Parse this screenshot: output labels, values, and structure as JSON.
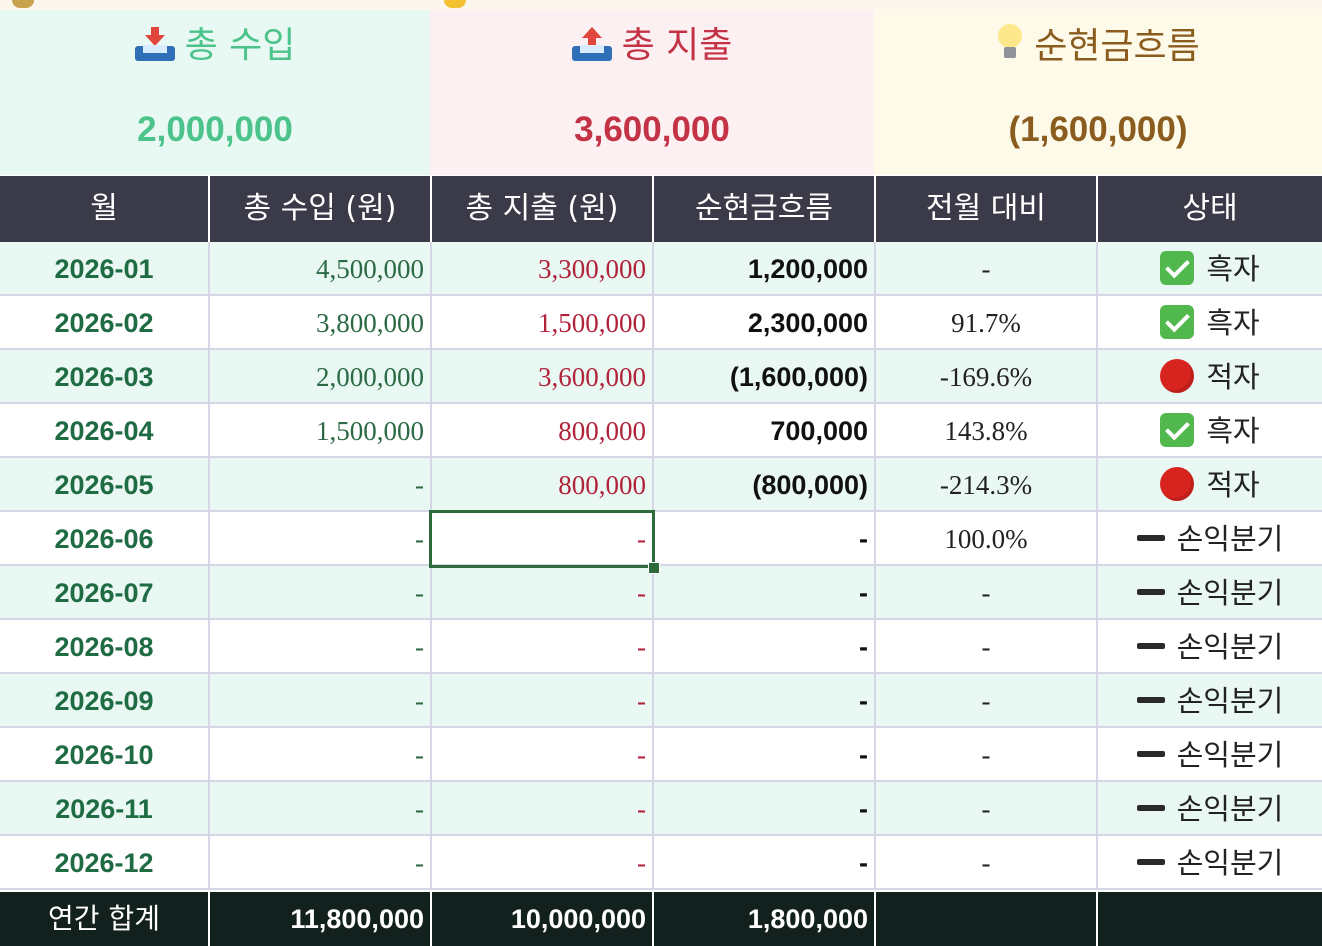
{
  "summary": {
    "income": {
      "label": "총 수입",
      "value": "2,000,000",
      "icon": "inbox-tray-icon",
      "color": "#4cc38a"
    },
    "expense": {
      "label": "총 지출",
      "value": "3,600,000",
      "icon": "outbox-tray-icon",
      "color": "#c33245"
    },
    "net": {
      "label": "순현금흐름",
      "value": "(1,600,000)",
      "icon": "light-bulb-icon",
      "color": "#8a5c1e"
    }
  },
  "table": {
    "columns": [
      "월",
      "총 수입 (원)",
      "총 지출 (원)",
      "순현금흐름",
      "전월 대비",
      "상태"
    ],
    "rows": [
      {
        "month": "2026-01",
        "income": "4,500,000",
        "expense": "3,300,000",
        "net": "1,200,000",
        "mom": "-",
        "status": "흑자",
        "status_icon": "check-mark-icon"
      },
      {
        "month": "2026-02",
        "income": "3,800,000",
        "expense": "1,500,000",
        "net": "2,300,000",
        "mom": "91.7%",
        "status": "흑자",
        "status_icon": "check-mark-icon"
      },
      {
        "month": "2026-03",
        "income": "2,000,000",
        "expense": "3,600,000",
        "net": "(1,600,000)",
        "mom": "-169.6%",
        "status": "적자",
        "status_icon": "red-circle-icon"
      },
      {
        "month": "2026-04",
        "income": "1,500,000",
        "expense": "800,000",
        "net": "700,000",
        "mom": "143.8%",
        "status": "흑자",
        "status_icon": "check-mark-icon"
      },
      {
        "month": "2026-05",
        "income": "-",
        "expense": "800,000",
        "net": "(800,000)",
        "mom": "-214.3%",
        "status": "적자",
        "status_icon": "red-circle-icon"
      },
      {
        "month": "2026-06",
        "income": "-",
        "expense": "-",
        "net": "-",
        "mom": "100.0%",
        "status": "손익분기",
        "status_icon": "minus-icon"
      },
      {
        "month": "2026-07",
        "income": "-",
        "expense": "-",
        "net": "-",
        "mom": "-",
        "status": "손익분기",
        "status_icon": "minus-icon"
      },
      {
        "month": "2026-08",
        "income": "-",
        "expense": "-",
        "net": "-",
        "mom": "-",
        "status": "손익분기",
        "status_icon": "minus-icon"
      },
      {
        "month": "2026-09",
        "income": "-",
        "expense": "-",
        "net": "-",
        "mom": "-",
        "status": "손익분기",
        "status_icon": "minus-icon"
      },
      {
        "month": "2026-10",
        "income": "-",
        "expense": "-",
        "net": "-",
        "mom": "-",
        "status": "손익분기",
        "status_icon": "minus-icon"
      },
      {
        "month": "2026-11",
        "income": "-",
        "expense": "-",
        "net": "-",
        "mom": "-",
        "status": "손익분기",
        "status_icon": "minus-icon"
      },
      {
        "month": "2026-12",
        "income": "-",
        "expense": "-",
        "net": "-",
        "mom": "-",
        "status": "손익분기",
        "status_icon": "minus-icon"
      }
    ],
    "total": {
      "label": "연간 합계",
      "income": "11,800,000",
      "expense": "10,000,000",
      "net": "1,800,000"
    }
  },
  "colors": {
    "header_bg": "#3a3a48",
    "total_bg": "#12211d",
    "row_tint": "#e9f8f2",
    "income_text": "#2b6a44",
    "expense_text": "#b0233b",
    "selection": "#2e6b3c"
  }
}
